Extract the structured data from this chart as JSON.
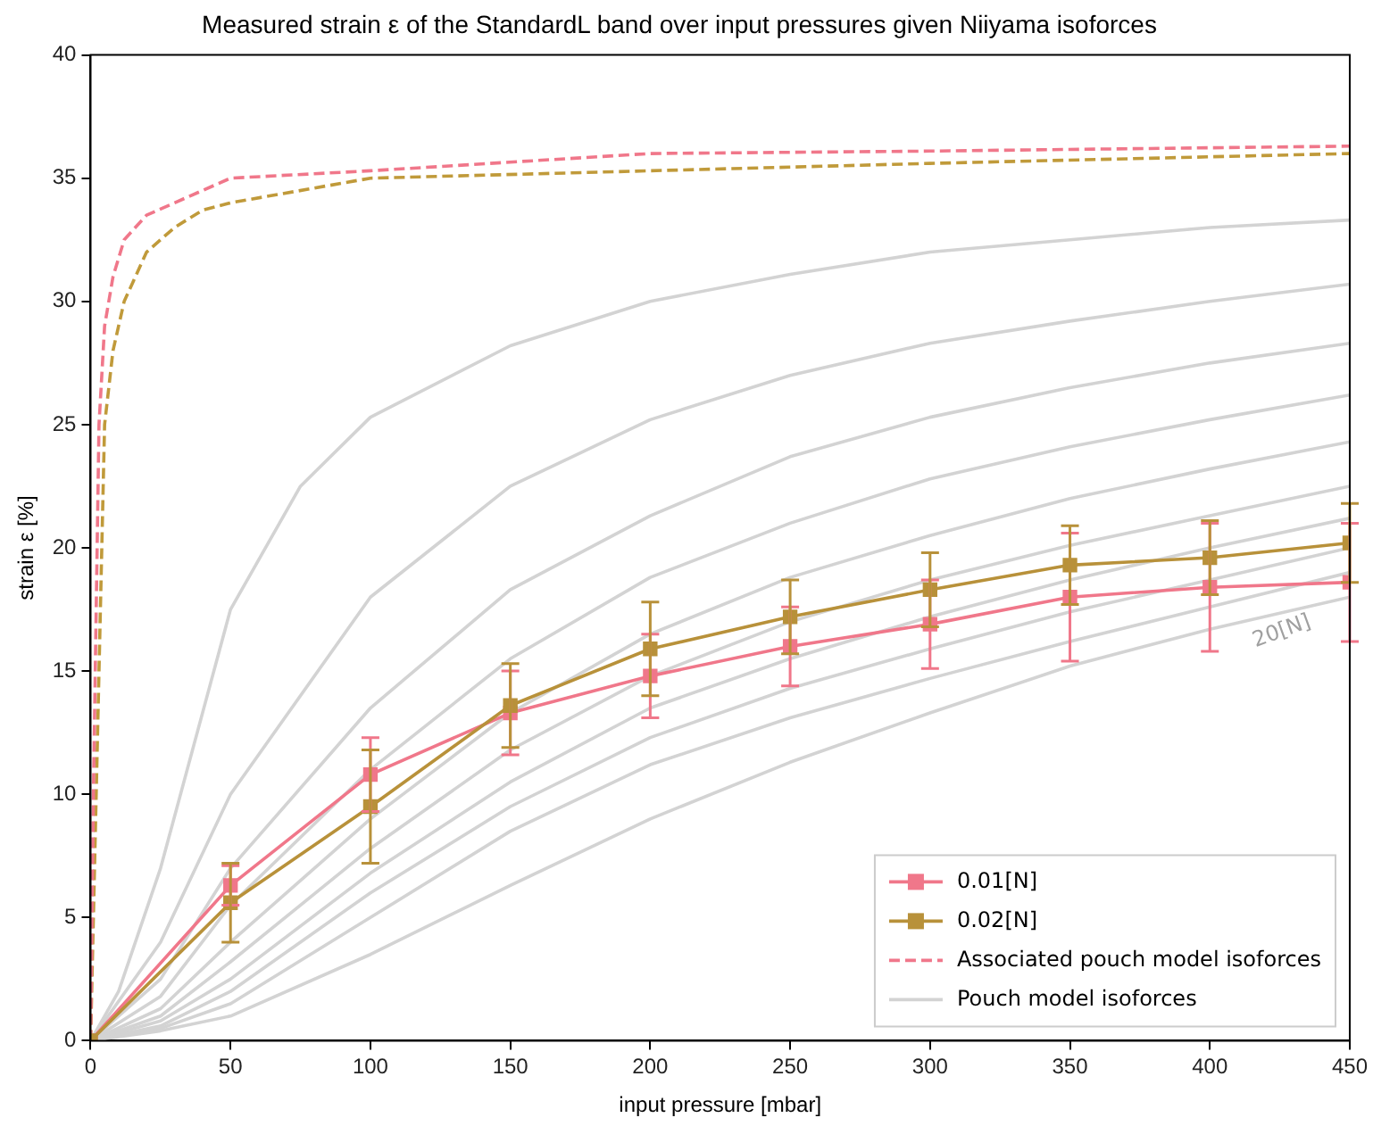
{
  "chart_data": {
    "type": "line",
    "title": "Measured strain ε of the StandardL band over input pressures given Niiyama isoforces",
    "xlabel": "input pressure [mbar]",
    "ylabel": "strain ε [%]",
    "xlim": [
      0,
      450
    ],
    "xticks": [
      0,
      50,
      100,
      150,
      200,
      250,
      300,
      350,
      400,
      450
    ],
    "ylim": [
      0,
      40
    ],
    "yticks": [
      0,
      5,
      10,
      15,
      20,
      25,
      30,
      35,
      40
    ],
    "grid": false,
    "legend": "bottom right",
    "x": [
      0,
      50,
      100,
      150,
      200,
      250,
      300,
      350,
      400,
      450
    ],
    "series": [
      {
        "name": "0.01[N]",
        "color": "#f0778a",
        "marker": "square",
        "line_style": "solid",
        "values": [
          0,
          6.3,
          10.8,
          13.3,
          14.8,
          16.0,
          16.9,
          18.0,
          18.4,
          18.6
        ],
        "errors": [
          null,
          0.8,
          1.5,
          1.7,
          1.7,
          1.6,
          1.8,
          2.6,
          2.6,
          2.4
        ]
      },
      {
        "name": "0.02[N]",
        "color": "#b8913a",
        "marker": "square",
        "line_style": "solid",
        "values": [
          0,
          5.6,
          9.5,
          13.6,
          15.9,
          17.2,
          18.3,
          19.3,
          19.6,
          20.2
        ],
        "errors": [
          null,
          1.6,
          2.3,
          1.7,
          1.9,
          1.5,
          1.5,
          1.6,
          1.5,
          1.6
        ]
      },
      {
        "name": "Associated pouch model isoforces",
        "color": "#f0778a",
        "marker": "none",
        "line_style": "dashed",
        "x": [
          0,
          1,
          3,
          5,
          8,
          12,
          20,
          30,
          50,
          100,
          200,
          300,
          450
        ],
        "values": [
          0,
          10,
          25,
          29,
          31,
          32.5,
          33.5,
          34,
          35,
          35.3,
          36,
          36.1,
          36.3
        ]
      },
      {
        "color": "#c09a3a",
        "marker": "none",
        "line_style": "dashed",
        "x": [
          0,
          2,
          5,
          8,
          12,
          20,
          30,
          40,
          50,
          100,
          200,
          300,
          450
        ],
        "values": [
          0,
          10,
          25,
          28,
          30,
          32,
          33,
          33.7,
          34,
          35,
          35.3,
          35.6,
          36
        ]
      },
      {
        "name": "Pouch model isoforces",
        "color": "#d3d3d3",
        "marker": "none",
        "line_style": "solid",
        "x": [
          0,
          10,
          25,
          50,
          75,
          100,
          150,
          200,
          250,
          300,
          350,
          400,
          450
        ],
        "values": [
          0,
          2,
          7,
          17.5,
          22.5,
          25.3,
          28.2,
          30,
          31.1,
          32,
          32.5,
          33,
          33.3
        ]
      },
      {
        "color": "#d3d3d3",
        "marker": "none",
        "line_style": "solid",
        "x": [
          0,
          25,
          50,
          100,
          150,
          200,
          250,
          300,
          350,
          400,
          450
        ],
        "values": [
          0,
          4,
          10,
          18,
          22.5,
          25.2,
          27,
          28.3,
          29.2,
          30,
          30.7
        ]
      },
      {
        "color": "#d3d3d3",
        "marker": "none",
        "line_style": "solid",
        "x": [
          0,
          25,
          50,
          100,
          150,
          200,
          250,
          300,
          350,
          400,
          450
        ],
        "values": [
          0,
          2.5,
          7,
          13.5,
          18.3,
          21.3,
          23.7,
          25.3,
          26.5,
          27.5,
          28.3
        ]
      },
      {
        "color": "#d3d3d3",
        "marker": "none",
        "line_style": "solid",
        "x": [
          0,
          25,
          50,
          100,
          150,
          200,
          250,
          300,
          350,
          400,
          450
        ],
        "values": [
          0,
          1.8,
          5.5,
          11,
          15.5,
          18.8,
          21,
          22.8,
          24.1,
          25.2,
          26.2
        ]
      },
      {
        "color": "#d3d3d3",
        "marker": "none",
        "line_style": "solid",
        "x": [
          0,
          25,
          50,
          100,
          150,
          200,
          250,
          300,
          350,
          400,
          450
        ],
        "values": [
          0,
          1.3,
          4,
          9,
          13.3,
          16.5,
          18.8,
          20.5,
          22,
          23.2,
          24.3
        ]
      },
      {
        "color": "#d3d3d3",
        "marker": "none",
        "line_style": "solid",
        "x": [
          0,
          25,
          50,
          100,
          150,
          200,
          250,
          300,
          350,
          400,
          450
        ],
        "values": [
          0,
          1,
          3.2,
          7.8,
          11.8,
          14.8,
          17,
          18.7,
          20.1,
          21.3,
          22.5
        ]
      },
      {
        "color": "#d3d3d3",
        "marker": "none",
        "line_style": "solid",
        "x": [
          0,
          25,
          50,
          100,
          150,
          200,
          250,
          300,
          350,
          400,
          450
        ],
        "values": [
          0,
          0.8,
          2.5,
          6.8,
          10.5,
          13.5,
          15.5,
          17.2,
          18.7,
          20,
          21.2
        ]
      },
      {
        "color": "#d3d3d3",
        "marker": "none",
        "line_style": "solid",
        "x": [
          0,
          25,
          50,
          100,
          150,
          200,
          250,
          300,
          350,
          400,
          450
        ],
        "values": [
          0,
          0.6,
          2,
          6,
          9.5,
          12.3,
          14.3,
          15.9,
          17.4,
          18.7,
          20
        ]
      },
      {
        "color": "#d3d3d3",
        "marker": "none",
        "line_style": "solid",
        "x": [
          0,
          25,
          50,
          100,
          150,
          200,
          250,
          300,
          350,
          400,
          450
        ],
        "values": [
          0,
          0.5,
          1.5,
          5,
          8.5,
          11.2,
          13.1,
          14.7,
          16.2,
          17.6,
          19
        ]
      },
      {
        "color": "#d3d3d3",
        "marker": "none",
        "line_style": "solid",
        "x": [
          0,
          25,
          50,
          100,
          150,
          200,
          250,
          300,
          350,
          400,
          450
        ],
        "values": [
          0,
          0.4,
          1,
          3.5,
          6.3,
          9,
          11.3,
          13.3,
          15.2,
          16.7,
          18
        ]
      }
    ],
    "annotations": [
      "20[N]"
    ]
  }
}
